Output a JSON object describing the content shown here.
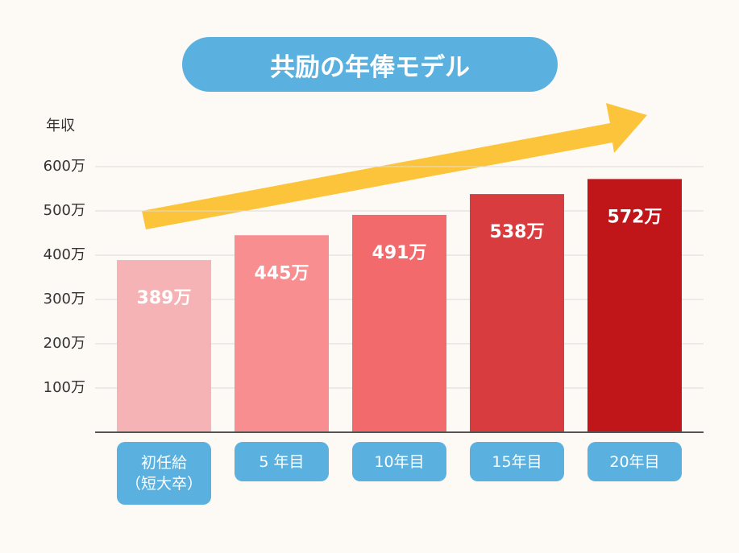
{
  "chart_data": {
    "type": "bar",
    "title": "共励の年俸モデル",
    "y_label": "年収",
    "categories": [
      "初任給\n（短大卒）",
      "5 年目",
      "10年目",
      "15年目",
      "20年目"
    ],
    "values": [
      389,
      445,
      491,
      538,
      572
    ],
    "value_labels": [
      "389万",
      "445万",
      "491万",
      "538万",
      "572万"
    ],
    "colors": [
      "#f5b3b5",
      "#f88e90",
      "#f26a6c",
      "#d93c3e",
      "#c0161a"
    ],
    "ylim": [
      0,
      600
    ],
    "yticks": [
      {
        "value": 100,
        "label": "100万"
      },
      {
        "value": 200,
        "label": "200万"
      },
      {
        "value": 300,
        "label": "300万"
      },
      {
        "value": 400,
        "label": "400万"
      },
      {
        "value": 500,
        "label": "500万"
      },
      {
        "value": 600,
        "label": "600万"
      }
    ],
    "grid": true
  }
}
